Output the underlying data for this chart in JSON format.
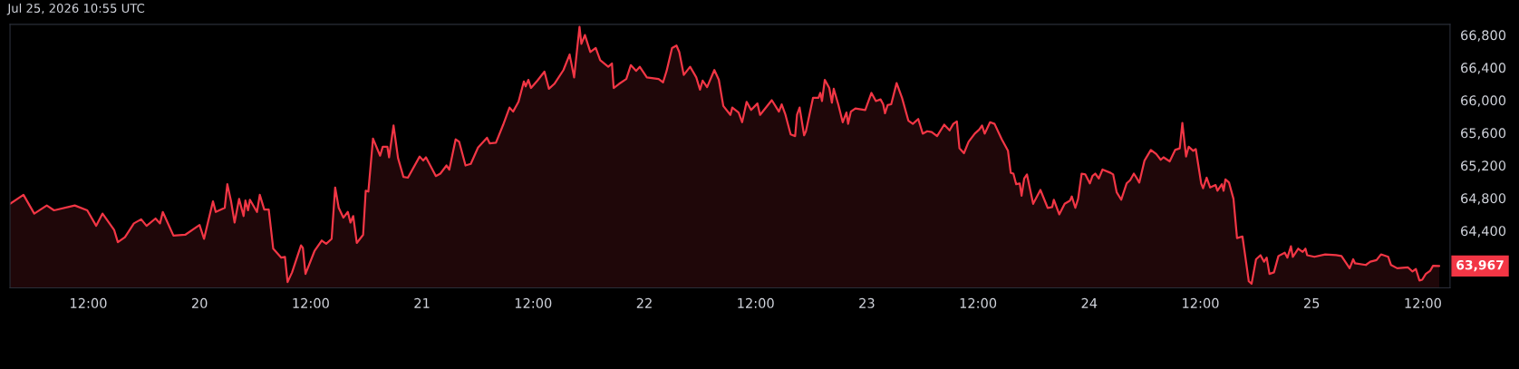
{
  "chart_data": {
    "type": "area",
    "annotations": [
      "Jul 25, 2026 10:55 UTC",
      {
        "text": "63,967",
        "x": "2026-07-25T13:46",
        "y": 63967
      }
    ],
    "x": [
      "2026-07-19T03:33",
      "2026-07-19T05:00",
      "2026-07-19T06:10",
      "2026-07-19T07:31",
      "2026-07-19T08:18",
      "2026-07-19T10:32",
      "2026-07-19T11:53",
      "2026-07-19T12:51",
      "2026-07-19T13:32",
      "2026-07-19T14:47",
      "2026-07-19T15:11",
      "2026-07-19T15:57",
      "2026-07-19T16:55",
      "2026-07-19T17:42",
      "2026-07-19T18:17",
      "2026-07-19T19:15",
      "2026-07-19T19:44",
      "2026-07-19T20:02",
      "2026-07-19T21:11",
      "2026-07-19T22:27",
      "2026-07-20T00:00",
      "2026-07-20T00:29",
      "2026-07-20T01:27",
      "2026-07-20T01:45",
      "2026-07-20T02:43",
      "2026-07-20T03:00",
      "2026-07-20T03:24",
      "2026-07-20T03:47",
      "2026-07-20T04:16",
      "2026-07-20T04:45",
      "2026-07-20T04:57",
      "2026-07-20T05:14",
      "2026-07-20T05:26",
      "2026-07-20T06:12",
      "2026-07-20T06:30",
      "2026-07-20T06:59",
      "2026-07-20T07:28",
      "2026-07-20T07:57",
      "2026-07-20T08:49",
      "2026-07-20T09:13",
      "2026-07-20T09:30",
      "2026-07-20T09:59",
      "2026-07-20T10:57",
      "2026-07-20T11:09",
      "2026-07-20T11:26",
      "2026-07-20T12:24",
      "2026-07-20T13:11",
      "2026-07-20T13:40",
      "2026-07-20T14:15",
      "2026-07-20T14:38",
      "2026-07-20T15:01",
      "2026-07-20T15:31",
      "2026-07-20T16:00",
      "2026-07-20T16:17",
      "2026-07-20T16:35",
      "2026-07-20T16:58",
      "2026-07-20T17:39",
      "2026-07-20T17:56",
      "2026-07-20T18:13",
      "2026-07-20T18:43",
      "2026-07-20T19:29",
      "2026-07-20T19:46",
      "2026-07-20T20:16",
      "2026-07-20T20:27",
      "2026-07-20T20:56",
      "2026-07-20T21:25",
      "2026-07-20T22:00",
      "2026-07-20T22:29",
      "2026-07-20T23:45",
      "2026-07-21T00:08",
      "2026-07-21T00:26",
      "2026-07-21T01:30",
      "2026-07-21T01:59",
      "2026-07-21T02:39",
      "2026-07-21T02:57",
      "2026-07-21T03:38",
      "2026-07-21T04:01",
      "2026-07-21T04:42",
      "2026-07-21T05:16",
      "2026-07-21T06:03",
      "2026-07-21T07:01",
      "2026-07-21T07:19",
      "2026-07-21T07:59",
      "2026-07-21T08:46",
      "2026-07-21T09:27",
      "2026-07-21T09:50",
      "2026-07-21T10:25",
      "2026-07-21T11:00",
      "2026-07-21T11:11",
      "2026-07-21T11:29",
      "2026-07-21T11:46",
      "2026-07-21T12:27",
      "2026-07-21T13:13",
      "2026-07-21T13:42",
      "2026-07-21T14:17",
      "2026-07-21T15:16",
      "2026-07-21T15:56",
      "2026-07-21T16:25",
      "2026-07-21T17:00",
      "2026-07-21T17:12",
      "2026-07-21T17:35",
      "2026-07-21T18:10",
      "2026-07-21T18:45",
      "2026-07-21T19:14",
      "2026-07-21T20:06",
      "2026-07-21T20:30",
      "2026-07-21T20:41",
      "2026-07-21T21:16",
      "2026-07-21T22:03",
      "2026-07-21T22:32",
      "2026-07-21T23:07",
      "2026-07-21T23:30",
      "2026-07-22T00:16",
      "2026-07-22T01:32",
      "2026-07-22T02:01",
      "2026-07-22T02:24",
      "2026-07-22T02:59",
      "2026-07-22T03:28",
      "2026-07-22T03:46",
      "2026-07-22T04:15",
      "2026-07-22T04:56",
      "2026-07-22T05:36",
      "2026-07-22T06:00",
      "2026-07-22T06:17",
      "2026-07-22T06:46",
      "2026-07-22T07:33",
      "2026-07-22T08:02",
      "2026-07-22T08:31",
      "2026-07-22T09:17",
      "2026-07-22T09:29",
      "2026-07-22T10:10",
      "2026-07-22T10:33",
      "2026-07-22T11:02",
      "2026-07-22T11:31",
      "2026-07-22T12:12",
      "2026-07-22T12:29",
      "2026-07-22T13:45",
      "2026-07-22T14:31",
      "2026-07-22T14:49",
      "2026-07-22T15:12",
      "2026-07-22T15:47",
      "2026-07-22T16:16",
      "2026-07-22T16:28",
      "2026-07-22T16:45",
      "2026-07-22T17:14",
      "2026-07-22T17:26",
      "2026-07-22T18:12",
      "2026-07-22T18:47",
      "2026-07-22T18:59",
      "2026-07-22T19:10",
      "2026-07-22T19:28",
      "2026-07-22T19:57",
      "2026-07-22T20:14",
      "2026-07-22T20:26",
      "2026-07-22T20:55",
      "2026-07-22T21:24",
      "2026-07-22T21:48",
      "2026-07-22T21:59",
      "2026-07-22T22:17",
      "2026-07-22T22:46",
      "2026-07-22T23:50",
      "2026-07-23T00:30",
      "2026-07-23T00:59",
      "2026-07-23T01:29",
      "2026-07-23T01:46",
      "2026-07-23T01:58",
      "2026-07-23T02:15",
      "2026-07-23T02:38",
      "2026-07-23T03:13",
      "2026-07-23T03:48",
      "2026-07-23T04:29",
      "2026-07-23T04:58",
      "2026-07-23T05:33",
      "2026-07-23T06:02",
      "2026-07-23T06:31",
      "2026-07-23T07:00",
      "2026-07-23T07:35",
      "2026-07-23T08:21",
      "2026-07-23T08:56",
      "2026-07-23T09:20",
      "2026-07-23T09:43",
      "2026-07-23T10:00",
      "2026-07-23T10:29",
      "2026-07-23T10:59",
      "2026-07-23T11:39",
      "2026-07-23T12:08",
      "2026-07-23T12:26",
      "2026-07-23T12:43",
      "2026-07-23T13:18",
      "2026-07-23T13:47",
      "2026-07-23T14:34",
      "2026-07-23T15:14",
      "2026-07-23T15:32",
      "2026-07-23T15:49",
      "2026-07-23T16:07",
      "2026-07-23T16:30",
      "2026-07-23T16:42",
      "2026-07-23T16:59",
      "2026-07-23T17:17",
      "2026-07-23T17:57",
      "2026-07-23T18:44",
      "2026-07-23T19:31",
      "2026-07-23T20:00",
      "2026-07-23T20:11",
      "2026-07-23T20:46",
      "2026-07-23T21:21",
      "2026-07-23T21:56",
      "2026-07-23T22:07",
      "2026-07-23T22:30",
      "2026-07-23T22:48",
      "2026-07-23T23:11",
      "2026-07-23T23:35",
      "2026-07-24T00:04",
      "2026-07-24T00:21",
      "2026-07-24T00:39",
      "2026-07-24T01:02",
      "2026-07-24T01:26",
      "2026-07-24T02:18",
      "2026-07-24T02:35",
      "2026-07-24T02:58",
      "2026-07-24T03:27",
      "2026-07-24T04:02",
      "2026-07-24T04:25",
      "2026-07-24T04:49",
      "2026-07-24T05:06",
      "2026-07-24T05:24",
      "2026-07-24T05:58",
      "2026-07-24T06:39",
      "2026-07-24T07:14",
      "2026-07-24T07:43",
      "2026-07-24T08:01",
      "2026-07-24T08:41",
      "2026-07-24T09:16",
      "2026-07-24T09:46",
      "2026-07-24T10:03",
      "2026-07-24T10:27",
      "2026-07-24T10:44",
      "2026-07-24T11:13",
      "2026-07-24T11:30",
      "2026-07-24T12:05",
      "2026-07-24T12:17",
      "2026-07-24T12:40",
      "2026-07-24T13:03",
      "2026-07-24T13:38",
      "2026-07-24T13:50",
      "2026-07-24T14:19",
      "2026-07-24T14:30",
      "2026-07-24T14:42",
      "2026-07-24T15:05",
      "2026-07-24T15:34",
      "2026-07-24T15:57",
      "2026-07-24T16:32",
      "2026-07-24T16:44",
      "2026-07-24T17:13",
      "2026-07-24T17:31",
      "2026-07-24T18:00",
      "2026-07-24T18:29",
      "2026-07-24T18:52",
      "2026-07-24T19:09",
      "2026-07-24T19:27",
      "2026-07-24T19:56",
      "2026-07-24T20:25",
      "2026-07-24T21:06",
      "2026-07-24T21:23",
      "2026-07-24T21:46",
      "2026-07-24T21:58",
      "2026-07-24T22:33",
      "2026-07-24T23:02",
      "2026-07-24T23:20",
      "2026-07-24T23:31",
      "2026-07-25T00:18",
      "2026-07-25T01:28",
      "2026-07-25T02:38",
      "2026-07-25T03:13",
      "2026-07-25T04:06",
      "2026-07-25T04:29",
      "2026-07-25T04:41",
      "2026-07-25T05:51",
      "2026-07-25T06:20",
      "2026-07-25T07:00",
      "2026-07-25T07:29",
      "2026-07-25T08:16",
      "2026-07-25T08:34",
      "2026-07-25T09:14",
      "2026-07-25T10:24",
      "2026-07-25T10:53",
      "2026-07-25T11:15",
      "2026-07-25T11:38",
      "2026-07-25T11:56",
      "2026-07-25T12:19",
      "2026-07-25T12:48",
      "2026-07-25T13:06",
      "2026-07-25T13:46"
    ],
    "series": [
      {
        "color": "#f23645",
        "values": [
          64730,
          64840,
          64610,
          64710,
          64650,
          64710,
          64650,
          64460,
          64610,
          64410,
          64260,
          64320,
          64490,
          64540,
          64460,
          64550,
          64490,
          64630,
          64340,
          64350,
          64470,
          64300,
          64760,
          64630,
          64680,
          64970,
          64760,
          64500,
          64790,
          64580,
          64770,
          64650,
          64780,
          64630,
          64840,
          64660,
          64660,
          64180,
          64070,
          64080,
          63770,
          63890,
          64220,
          64190,
          63870,
          64150,
          64280,
          64240,
          64300,
          64930,
          64680,
          64560,
          64630,
          64500,
          64580,
          64250,
          64350,
          64890,
          64880,
          65530,
          65320,
          65430,
          65430,
          65300,
          65690,
          65290,
          65060,
          65050,
          65310,
          65260,
          65300,
          65070,
          65100,
          65200,
          65150,
          65520,
          65490,
          65200,
          65220,
          65420,
          65540,
          65470,
          65480,
          65700,
          65910,
          65860,
          65980,
          66230,
          66170,
          66250,
          66150,
          66240,
          66350,
          66140,
          66200,
          66370,
          66560,
          66280,
          66900,
          66690,
          66800,
          66590,
          66640,
          66490,
          66410,
          66450,
          66150,
          66200,
          66260,
          66430,
          66360,
          66410,
          66280,
          66260,
          66220,
          66360,
          66640,
          66670,
          66590,
          66310,
          66410,
          66280,
          66130,
          66240,
          66160,
          66370,
          66250,
          65930,
          65820,
          65910,
          65850,
          65730,
          65980,
          65880,
          65960,
          65820,
          66000,
          65860,
          65950,
          65830,
          65580,
          65560,
          65820,
          65910,
          65570,
          65620,
          66030,
          66030,
          66090,
          65990,
          66250,
          66150,
          65970,
          66140,
          65950,
          65730,
          65850,
          65710,
          65860,
          65900,
          65880,
          66090,
          65990,
          66010,
          65950,
          65840,
          65940,
          65950,
          66210,
          66030,
          65750,
          65710,
          65770,
          65590,
          65620,
          65610,
          65560,
          65700,
          65630,
          65710,
          65740,
          65410,
          65350,
          65490,
          65590,
          65640,
          65690,
          65590,
          65730,
          65710,
          65520,
          65380,
          65110,
          65100,
          64970,
          64980,
          64830,
          65040,
          65090,
          64730,
          64900,
          64680,
          64690,
          64780,
          64600,
          64730,
          64770,
          64820,
          64680,
          64790,
          65100,
          65090,
          64980,
          65070,
          65100,
          65040,
          65150,
          65110,
          65090,
          64870,
          64780,
          64980,
          65020,
          65100,
          65050,
          64990,
          65260,
          65390,
          65340,
          65270,
          65300,
          65250,
          65390,
          65410,
          65720,
          65310,
          65430,
          65380,
          65400,
          64980,
          64920,
          65050,
          64930,
          64960,
          64890,
          64970,
          64890,
          65030,
          64990,
          64790,
          64310,
          64330,
          64170,
          63780,
          63750,
          64050,
          64100,
          64020,
          64070,
          63870,
          63890,
          64090,
          64130,
          64070,
          64210,
          64080,
          64180,
          64140,
          64180,
          64100,
          64080,
          64110,
          64100,
          64090,
          63940,
          64050,
          64000,
          63980,
          64020,
          64040,
          64110,
          64080,
          63980,
          63940,
          63950,
          63900,
          63930,
          63790,
          63800,
          63870,
          63910,
          63970,
          63967
        ]
      }
    ],
    "xlim": [
      "2026-07-19T03:33",
      "2026-07-25T14:56"
    ],
    "xticks": [
      {
        "value": "2026-07-19T12:00",
        "label": "12:00"
      },
      {
        "value": "2026-07-20T00:00",
        "label": "20"
      },
      {
        "value": "2026-07-20T12:00",
        "label": "12:00"
      },
      {
        "value": "2026-07-21T00:00",
        "label": "21"
      },
      {
        "value": "2026-07-21T12:00",
        "label": "12:00"
      },
      {
        "value": "2026-07-22T00:00",
        "label": "22"
      },
      {
        "value": "2026-07-22T12:00",
        "label": "12:00"
      },
      {
        "value": "2026-07-23T00:00",
        "label": "23"
      },
      {
        "value": "2026-07-23T12:00",
        "label": "12:00"
      },
      {
        "value": "2026-07-24T00:00",
        "label": "24"
      },
      {
        "value": "2026-07-24T12:00",
        "label": "12:00"
      },
      {
        "value": "2026-07-25T00:00",
        "label": "25"
      },
      {
        "value": "2026-07-25T12:00",
        "label": "12:00"
      }
    ],
    "ylim": [
      63700,
      66930
    ],
    "yticks": [
      {
        "value": 64400,
        "label": "64,400"
      },
      {
        "value": 64800,
        "label": "64,800"
      },
      {
        "value": 65200,
        "label": "65,200"
      },
      {
        "value": 65600,
        "label": "65,600"
      },
      {
        "value": 66000,
        "label": "66,000"
      },
      {
        "value": 66400,
        "label": "66,400"
      },
      {
        "value": 66800,
        "label": "66,800"
      }
    ],
    "grid": false,
    "legend": false
  }
}
